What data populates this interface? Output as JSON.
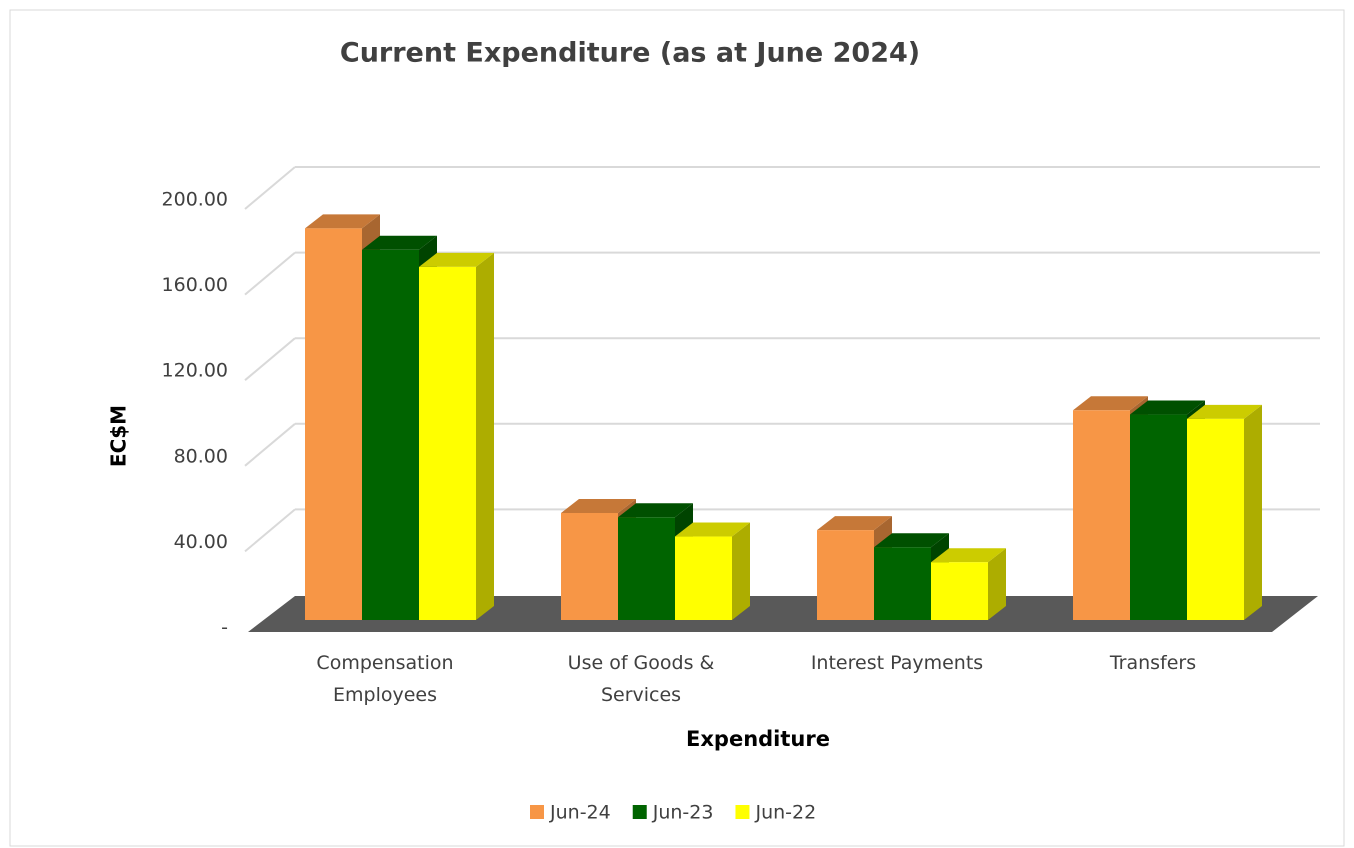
{
  "chart_data": {
    "type": "bar3d",
    "title": "Current Expenditure (as at June 2024)",
    "x_label": "Expenditure",
    "y_label": "EC$M",
    "categories": [
      "Compensation Employees",
      "Use of Goods & Services",
      "Interest Payments",
      "Transfers"
    ],
    "series": [
      {
        "name": "Jun-24",
        "color": "#f79646",
        "values": [
          183,
          50,
          42,
          98
        ]
      },
      {
        "name": "Jun-23",
        "color": "#006400",
        "values": [
          173,
          48,
          34,
          96
        ]
      },
      {
        "name": "Jun-22",
        "color": "#ffff00",
        "values": [
          165,
          39,
          27,
          94
        ]
      }
    ],
    "ylim": [
      0,
      200
    ],
    "yticks": [
      {
        "value": 0,
        "label": "-"
      },
      {
        "value": 40,
        "label": "40.00"
      },
      {
        "value": 80,
        "label": "80.00"
      },
      {
        "value": 120,
        "label": "120.00"
      },
      {
        "value": 160,
        "label": "160.00"
      },
      {
        "value": 200,
        "label": "200.00"
      }
    ],
    "grid": true,
    "legend": "bottom"
  }
}
